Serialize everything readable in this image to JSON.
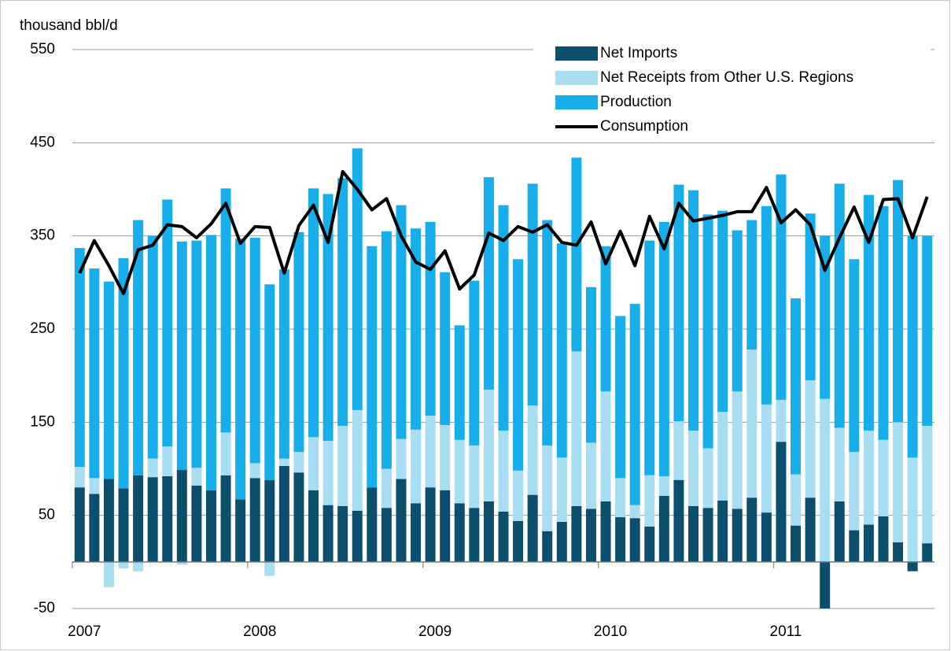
{
  "chart_data": {
    "type": "bar",
    "stacked": true,
    "y_axis_label": "thousand bbl/d",
    "categories": [
      "2007",
      null,
      null,
      null,
      null,
      null,
      null,
      null,
      null,
      null,
      null,
      null,
      "2008",
      null,
      null,
      null,
      null,
      null,
      null,
      null,
      null,
      null,
      null,
      null,
      "2009",
      null,
      null,
      null,
      null,
      null,
      null,
      null,
      null,
      null,
      null,
      null,
      "2010",
      null,
      null,
      null,
      null,
      null,
      null,
      null,
      null,
      null,
      null,
      null,
      "2011",
      null,
      null,
      null,
      null,
      null,
      null,
      null,
      null,
      null,
      null
    ],
    "series": [
      {
        "name": "Net Imports",
        "color": "#0b4f6c",
        "values": [
          80,
          73,
          89,
          79,
          93,
          91,
          92,
          99,
          82,
          77,
          93,
          67,
          90,
          88,
          103,
          96,
          77,
          61,
          60,
          55,
          80,
          58,
          89,
          63,
          80,
          77,
          63,
          58,
          65,
          54,
          44,
          72,
          33,
          43,
          60,
          57,
          65,
          48,
          47,
          38,
          71,
          88,
          60,
          58,
          66,
          57,
          69,
          53,
          129,
          39,
          69,
          -50,
          65,
          34,
          40,
          49,
          21,
          -10,
          20
        ]
      },
      {
        "name": "Net Receipts from Other U.S. Regions",
        "color": "#a8ddf2",
        "values": [
          22,
          17,
          -27,
          -7,
          -10,
          20,
          32,
          -3,
          19,
          -1,
          46,
          0,
          16,
          -15,
          8,
          22,
          57,
          69,
          86,
          108,
          0,
          42,
          43,
          79,
          77,
          70,
          68,
          67,
          120,
          87,
          54,
          96,
          92,
          69,
          166,
          71,
          118,
          42,
          14,
          55,
          21,
          63,
          81,
          64,
          95,
          126,
          159,
          116,
          45,
          55,
          126,
          175,
          79,
          84,
          101,
          82,
          129,
          112,
          126
        ]
      },
      {
        "name": "Production",
        "color": "#18aee9",
        "values": [
          235,
          225,
          212,
          247,
          274,
          239,
          265,
          245,
          244,
          274,
          262,
          280,
          242,
          210,
          203,
          236,
          267,
          265,
          266,
          281,
          259,
          255,
          251,
          216,
          208,
          164,
          123,
          177,
          228,
          242,
          227,
          238,
          242,
          230,
          208,
          167,
          156,
          174,
          216,
          252,
          273,
          254,
          258,
          251,
          216,
          173,
          139,
          213,
          242,
          189,
          179,
          175,
          262,
          207,
          253,
          251,
          260,
          238,
          204
        ]
      },
      {
        "name": "Consumption",
        "type": "line",
        "color": "#000000",
        "values": [
          310,
          345,
          318,
          288,
          335,
          340,
          362,
          360,
          348,
          363,
          385,
          342,
          360,
          359,
          310,
          361,
          383,
          343,
          419,
          400,
          378,
          390,
          350,
          322,
          314,
          334,
          293,
          308,
          353,
          345,
          360,
          354,
          362,
          343,
          340,
          365,
          320,
          355,
          318,
          371,
          336,
          385,
          366,
          369,
          372,
          376,
          376,
          402,
          364,
          378,
          362,
          313,
          348,
          381,
          343,
          389,
          390,
          348,
          392
        ]
      }
    ],
    "ylim": [
      -50,
      550
    ],
    "yticks": [
      -50,
      50,
      150,
      250,
      350,
      450,
      550
    ],
    "grid": true
  }
}
